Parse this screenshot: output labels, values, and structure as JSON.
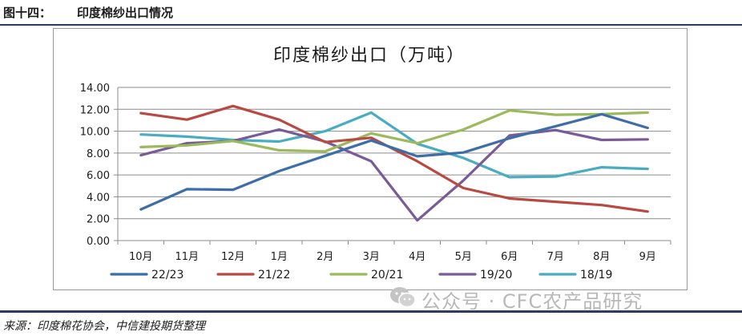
{
  "header": {
    "figure_label": "图十四：",
    "figure_title": "印度棉纱出口情况"
  },
  "footer": {
    "source": "来源：印度棉花协会，中信建投期货整理"
  },
  "watermark": {
    "text": "公众号 · CFC农产品研究",
    "icon": "wechat-icon"
  },
  "chart_data": {
    "type": "line",
    "title": "印度棉纱出口（万吨）",
    "xlabel": "",
    "ylabel": "",
    "categories": [
      "10月",
      "11月",
      "12月",
      "1月",
      "2月",
      "3月",
      "4月",
      "5月",
      "6月",
      "7月",
      "8月",
      "9月"
    ],
    "ylim": [
      0,
      14
    ],
    "yticks": [
      "0.00",
      "2.00",
      "4.00",
      "6.00",
      "8.00",
      "10.00",
      "12.00",
      "14.00"
    ],
    "grid": true,
    "legend_position": "bottom",
    "series": [
      {
        "name": "22/23",
        "color": "#3e6ea8",
        "values": [
          2.85,
          4.7,
          4.65,
          6.35,
          7.75,
          9.15,
          7.7,
          8.05,
          9.35,
          10.45,
          11.55,
          10.3
        ]
      },
      {
        "name": "21/22",
        "color": "#b84a43",
        "values": [
          11.65,
          11.05,
          12.3,
          11.05,
          9.0,
          9.4,
          7.25,
          4.8,
          3.85,
          3.55,
          3.25,
          2.65
        ]
      },
      {
        "name": "20/21",
        "color": "#9aba5c",
        "values": [
          8.55,
          8.7,
          9.1,
          8.25,
          8.15,
          9.8,
          8.9,
          10.15,
          11.9,
          11.5,
          11.55,
          11.7
        ]
      },
      {
        "name": "19/20",
        "color": "#7a5b95",
        "values": [
          7.8,
          8.9,
          9.1,
          10.15,
          9.05,
          7.25,
          1.85,
          5.5,
          9.6,
          10.1,
          9.2,
          9.25
        ]
      },
      {
        "name": "18/19",
        "color": "#4aacc0",
        "values": [
          9.7,
          9.5,
          9.2,
          9.05,
          10.0,
          11.7,
          8.85,
          7.55,
          5.8,
          5.85,
          6.7,
          6.55
        ]
      }
    ]
  }
}
